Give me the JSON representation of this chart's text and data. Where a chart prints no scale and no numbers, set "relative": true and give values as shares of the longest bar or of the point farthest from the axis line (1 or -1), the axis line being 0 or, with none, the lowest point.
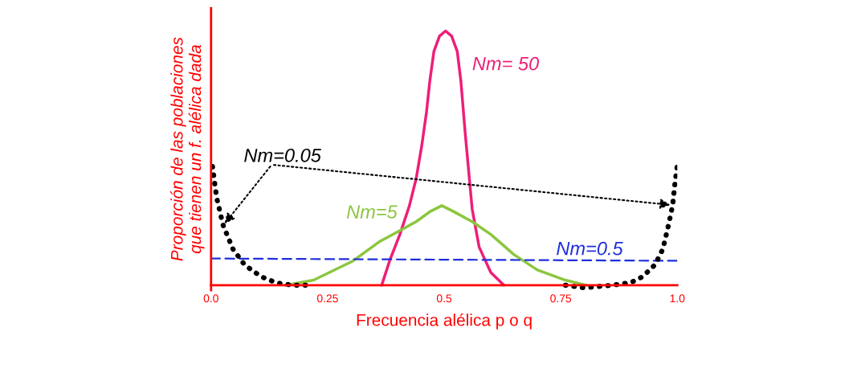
{
  "chart_data": {
    "type": "line",
    "relative": true,
    "xlabel": "Frecuencia alélica p o q",
    "ylabel": "Proporción de las poblaciones\nque tienen un f. alélica dada",
    "xlim": [
      0,
      1
    ],
    "xticks": [
      {
        "value": 0,
        "label": "0.0"
      },
      0.25,
      0.5,
      0.75,
      {
        "value": 1,
        "label": "1.0"
      }
    ],
    "grid": false,
    "legend": false,
    "marker": "none",
    "series": [
      {
        "name": "Nm= 50",
        "color": "#ee1e78",
        "line_style": "solid",
        "x": [
          0.366,
          0.383,
          0.405,
          0.425,
          0.44,
          0.452,
          0.462,
          0.469,
          0.478,
          0.49,
          0.503,
          0.516,
          0.528,
          0.536,
          0.545,
          0.56,
          0.575,
          0.6,
          0.628
        ],
        "values": [
          0,
          0.096,
          0.2,
          0.31,
          0.42,
          0.55,
          0.68,
          0.8,
          0.92,
          0.98,
          1,
          0.98,
          0.92,
          0.8,
          0.6,
          0.3,
          0.15,
          0.05,
          0
        ]
      },
      {
        "name": "Nm=5",
        "color": "#8cc63e",
        "line_style": "solid",
        "x": [
          0.159,
          0.22,
          0.305,
          0.36,
          0.4,
          0.44,
          0.47,
          0.495,
          0.52,
          0.56,
          0.6,
          0.65,
          0.7,
          0.76,
          0.805
        ],
        "values": [
          0,
          0.02,
          0.096,
          0.17,
          0.21,
          0.25,
          0.29,
          0.313,
          0.29,
          0.25,
          0.2,
          0.12,
          0.06,
          0.02,
          0
        ]
      },
      {
        "name": "Nm=0.5",
        "color": "#1f2fdc",
        "line_style": "dashed",
        "x": [
          0,
          1
        ],
        "values": [
          0.105,
          0.096
        ]
      },
      {
        "name": "Nm=0.05",
        "color": "#000000",
        "line_style": "dotted",
        "x": [
          0.003,
          0.012,
          0.026,
          0.047,
          0.072,
          0.107,
          0.141,
          0.176,
          0.21,
          0.5,
          0.76,
          0.8,
          0.86,
          0.9,
          0.926,
          0.952,
          0.969,
          0.981,
          0.99,
          0.995,
          1.0
        ],
        "values": [
          0.467,
          0.344,
          0.235,
          0.142,
          0.08,
          0.034,
          0.009,
          0,
          0,
          null,
          0,
          -0.01,
          0,
          0.01,
          0.034,
          0.08,
          0.142,
          0.235,
          0.315,
          0.4,
          0.47
        ]
      }
    ]
  }
}
